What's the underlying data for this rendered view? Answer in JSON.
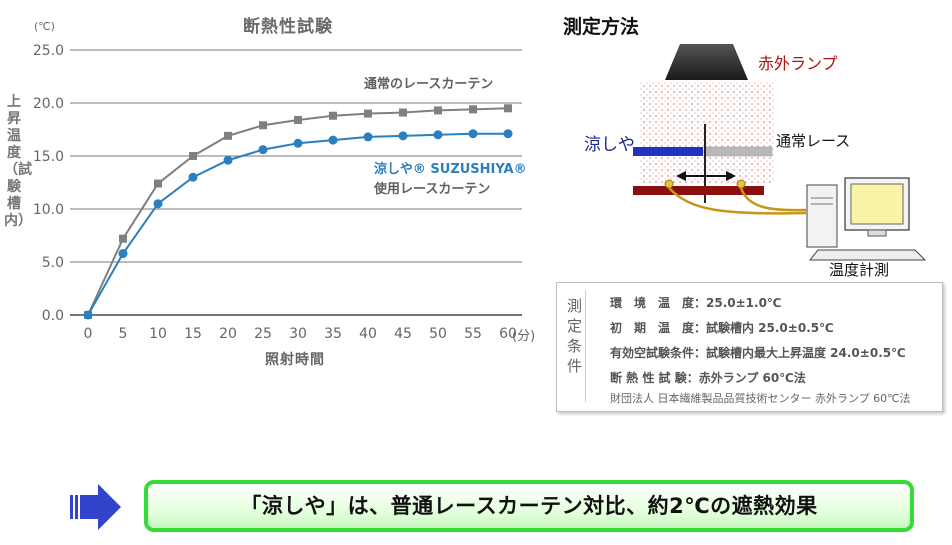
{
  "chart_data": {
    "type": "line",
    "title": "断熱性試験",
    "y_unit": "(℃)",
    "ylabel": "上昇温度（試験槽内）",
    "xlabel": "照射時間",
    "x_unit": "(分)",
    "x": [
      0,
      5,
      10,
      15,
      20,
      25,
      30,
      35,
      40,
      45,
      50,
      55,
      60
    ],
    "x_tick_labels": [
      "0",
      "5",
      "10",
      "15",
      "20",
      "25",
      "30",
      "35",
      "40",
      "45",
      "50",
      "55",
      "60"
    ],
    "y_ticks": [
      0,
      5,
      10,
      15,
      20,
      25
    ],
    "y_tick_labels": [
      "0.0",
      "5.0",
      "10.0",
      "15.0",
      "20.0",
      "25.0"
    ],
    "ylim": [
      0,
      25
    ],
    "xlim": [
      0,
      60
    ],
    "grid": "horizontal",
    "series": [
      {
        "name": "通常のレースカーテン",
        "color": "#808080",
        "marker": "square",
        "values": [
          0,
          7.2,
          12.4,
          15.0,
          16.9,
          17.9,
          18.4,
          18.8,
          19.0,
          19.1,
          19.3,
          19.4,
          19.5
        ]
      },
      {
        "name": "涼しや® SUZUSHIYA® 使用レースカーテン",
        "color": "#2a7fc0",
        "marker": "circle",
        "values": [
          0,
          5.8,
          10.5,
          13.0,
          14.6,
          15.6,
          16.2,
          16.5,
          16.8,
          16.9,
          17.0,
          17.1,
          17.1
        ]
      }
    ],
    "annotations": {
      "gray": "通常のレースカーテン",
      "blue_line1": "涼しや® SUZUSHIYA®",
      "blue_line2": "使用レースカーテン"
    }
  },
  "method": {
    "title": "測定方法",
    "lamp_label": "赤外ランプ",
    "suzushiya_label": "涼しや",
    "lace_label": "通常レース",
    "meter_label": "温度計測"
  },
  "conditions": {
    "title": "測定条件",
    "rows": [
      "環　境　温　度：25.0±1.0℃",
      "初　期　温　度：試験槽内 25.0±0.5℃",
      "有効空試験条件：試験槽内最大上昇温度 24.0±0.5℃",
      "断 熱 性 試 験：赤外ランプ 60℃法"
    ],
    "note": "財団法人 日本繊維製品品質技術センター 赤外ランプ 60℃法"
  },
  "banner": {
    "text": "「涼しや」は、普通レースカーテン対比、約2℃の遮熱効果"
  },
  "colors": {
    "gray_series": "#808080",
    "blue_series": "#2a7fc0",
    "banner_border": "#33dd33",
    "arrow": "#3344cc",
    "lamp_label": "#b01010"
  }
}
